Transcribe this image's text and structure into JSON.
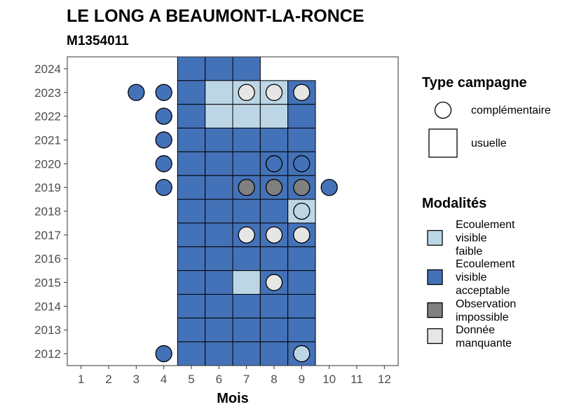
{
  "chart_data": {
    "type": "heatmap",
    "title": "LE LONG A BEAUMONT-LA-RONCE",
    "subtitle": "M1354011",
    "xlabel": "Mois",
    "ylabel": "",
    "x_ticks": [
      "1",
      "2",
      "3",
      "4",
      "5",
      "6",
      "7",
      "8",
      "9",
      "10",
      "11",
      "12"
    ],
    "y_ticks": [
      "2012",
      "2013",
      "2014",
      "2015",
      "2016",
      "2017",
      "2018",
      "2019",
      "2020",
      "2021",
      "2022",
      "2023",
      "2024"
    ],
    "xlim": [
      0.5,
      12.5
    ],
    "ylim": [
      2011.5,
      2024.5
    ],
    "grid": false,
    "legend_position": "right",
    "colors": {
      "Ecoulement visible faible": "#bcd6e6",
      "Ecoulement visible acceptable": "#4472b8",
      "Observation impossible": "#808080",
      "Donnée manquante": "#e6e6e6"
    },
    "legend_type": {
      "title": "Type campagne",
      "entries": [
        {
          "label": "complémentaire",
          "shape": "circle"
        },
        {
          "label": "usuelle",
          "shape": "square"
        }
      ]
    },
    "legend_modalites": {
      "title": "Modalités",
      "entries": [
        {
          "key": "Ecoulement visible faible",
          "lines": [
            "Ecoulement",
            "visible",
            "faible"
          ]
        },
        {
          "key": "Ecoulement visible acceptable",
          "lines": [
            "Ecoulement",
            "visible",
            "acceptable"
          ]
        },
        {
          "key": "Observation impossible",
          "lines": [
            "Observation",
            "impossible"
          ]
        },
        {
          "key": "Donnée manquante",
          "lines": [
            "Donnée",
            "manquante"
          ]
        }
      ]
    },
    "usuelle": [
      {
        "year": 2024,
        "month": 5,
        "mod": "Ecoulement visible acceptable"
      },
      {
        "year": 2024,
        "month": 6,
        "mod": "Ecoulement visible acceptable"
      },
      {
        "year": 2024,
        "month": 7,
        "mod": "Ecoulement visible acceptable"
      },
      {
        "year": 2023,
        "month": 5,
        "mod": "Ecoulement visible acceptable"
      },
      {
        "year": 2023,
        "month": 6,
        "mod": "Ecoulement visible faible"
      },
      {
        "year": 2023,
        "month": 7,
        "mod": "Ecoulement visible faible"
      },
      {
        "year": 2023,
        "month": 8,
        "mod": "Ecoulement visible faible"
      },
      {
        "year": 2023,
        "month": 9,
        "mod": "Ecoulement visible acceptable"
      },
      {
        "year": 2022,
        "month": 5,
        "mod": "Ecoulement visible acceptable"
      },
      {
        "year": 2022,
        "month": 6,
        "mod": "Ecoulement visible faible"
      },
      {
        "year": 2022,
        "month": 7,
        "mod": "Ecoulement visible faible"
      },
      {
        "year": 2022,
        "month": 8,
        "mod": "Ecoulement visible faible"
      },
      {
        "year": 2022,
        "month": 9,
        "mod": "Ecoulement visible acceptable"
      },
      {
        "year": 2021,
        "month": 5,
        "mod": "Ecoulement visible acceptable"
      },
      {
        "year": 2021,
        "month": 6,
        "mod": "Ecoulement visible acceptable"
      },
      {
        "year": 2021,
        "month": 7,
        "mod": "Ecoulement visible acceptable"
      },
      {
        "year": 2021,
        "month": 8,
        "mod": "Ecoulement visible acceptable"
      },
      {
        "year": 2021,
        "month": 9,
        "mod": "Ecoulement visible acceptable"
      },
      {
        "year": 2020,
        "month": 5,
        "mod": "Ecoulement visible acceptable"
      },
      {
        "year": 2020,
        "month": 6,
        "mod": "Ecoulement visible acceptable"
      },
      {
        "year": 2020,
        "month": 7,
        "mod": "Ecoulement visible acceptable"
      },
      {
        "year": 2020,
        "month": 8,
        "mod": "Ecoulement visible acceptable"
      },
      {
        "year": 2020,
        "month": 9,
        "mod": "Ecoulement visible acceptable"
      },
      {
        "year": 2019,
        "month": 5,
        "mod": "Ecoulement visible acceptable"
      },
      {
        "year": 2019,
        "month": 6,
        "mod": "Ecoulement visible acceptable"
      },
      {
        "year": 2019,
        "month": 7,
        "mod": "Ecoulement visible acceptable"
      },
      {
        "year": 2019,
        "month": 8,
        "mod": "Ecoulement visible acceptable"
      },
      {
        "year": 2019,
        "month": 9,
        "mod": "Ecoulement visible acceptable"
      },
      {
        "year": 2018,
        "month": 5,
        "mod": "Ecoulement visible acceptable"
      },
      {
        "year": 2018,
        "month": 6,
        "mod": "Ecoulement visible acceptable"
      },
      {
        "year": 2018,
        "month": 7,
        "mod": "Ecoulement visible acceptable"
      },
      {
        "year": 2018,
        "month": 8,
        "mod": "Ecoulement visible acceptable"
      },
      {
        "year": 2018,
        "month": 9,
        "mod": "Ecoulement visible faible"
      },
      {
        "year": 2017,
        "month": 5,
        "mod": "Ecoulement visible acceptable"
      },
      {
        "year": 2017,
        "month": 6,
        "mod": "Ecoulement visible acceptable"
      },
      {
        "year": 2017,
        "month": 7,
        "mod": "Ecoulement visible acceptable"
      },
      {
        "year": 2017,
        "month": 8,
        "mod": "Ecoulement visible acceptable"
      },
      {
        "year": 2017,
        "month": 9,
        "mod": "Ecoulement visible acceptable"
      },
      {
        "year": 2016,
        "month": 5,
        "mod": "Ecoulement visible acceptable"
      },
      {
        "year": 2016,
        "month": 6,
        "mod": "Ecoulement visible acceptable"
      },
      {
        "year": 2016,
        "month": 7,
        "mod": "Ecoulement visible acceptable"
      },
      {
        "year": 2016,
        "month": 8,
        "mod": "Ecoulement visible acceptable"
      },
      {
        "year": 2016,
        "month": 9,
        "mod": "Ecoulement visible acceptable"
      },
      {
        "year": 2015,
        "month": 5,
        "mod": "Ecoulement visible acceptable"
      },
      {
        "year": 2015,
        "month": 6,
        "mod": "Ecoulement visible acceptable"
      },
      {
        "year": 2015,
        "month": 7,
        "mod": "Ecoulement visible faible"
      },
      {
        "year": 2015,
        "month": 8,
        "mod": "Ecoulement visible acceptable"
      },
      {
        "year": 2015,
        "month": 9,
        "mod": "Ecoulement visible acceptable"
      },
      {
        "year": 2014,
        "month": 5,
        "mod": "Ecoulement visible acceptable"
      },
      {
        "year": 2014,
        "month": 6,
        "mod": "Ecoulement visible acceptable"
      },
      {
        "year": 2014,
        "month": 7,
        "mod": "Ecoulement visible acceptable"
      },
      {
        "year": 2014,
        "month": 8,
        "mod": "Ecoulement visible acceptable"
      },
      {
        "year": 2014,
        "month": 9,
        "mod": "Ecoulement visible acceptable"
      },
      {
        "year": 2013,
        "month": 5,
        "mod": "Ecoulement visible acceptable"
      },
      {
        "year": 2013,
        "month": 6,
        "mod": "Ecoulement visible acceptable"
      },
      {
        "year": 2013,
        "month": 7,
        "mod": "Ecoulement visible acceptable"
      },
      {
        "year": 2013,
        "month": 8,
        "mod": "Ecoulement visible acceptable"
      },
      {
        "year": 2013,
        "month": 9,
        "mod": "Ecoulement visible acceptable"
      },
      {
        "year": 2012,
        "month": 5,
        "mod": "Ecoulement visible acceptable"
      },
      {
        "year": 2012,
        "month": 6,
        "mod": "Ecoulement visible acceptable"
      },
      {
        "year": 2012,
        "month": 7,
        "mod": "Ecoulement visible acceptable"
      },
      {
        "year": 2012,
        "month": 8,
        "mod": "Ecoulement visible acceptable"
      },
      {
        "year": 2012,
        "month": 9,
        "mod": "Ecoulement visible acceptable"
      }
    ],
    "complementaire": [
      {
        "year": 2023,
        "month": 3,
        "mod": "Ecoulement visible acceptable"
      },
      {
        "year": 2023,
        "month": 4,
        "mod": "Ecoulement visible acceptable"
      },
      {
        "year": 2023,
        "month": 7,
        "mod": "Donnée manquante"
      },
      {
        "year": 2023,
        "month": 8,
        "mod": "Donnée manquante"
      },
      {
        "year": 2023,
        "month": 9,
        "mod": "Donnée manquante"
      },
      {
        "year": 2022,
        "month": 4,
        "mod": "Ecoulement visible acceptable"
      },
      {
        "year": 2021,
        "month": 4,
        "mod": "Ecoulement visible acceptable"
      },
      {
        "year": 2020,
        "month": 4,
        "mod": "Ecoulement visible acceptable"
      },
      {
        "year": 2020,
        "month": 8,
        "mod": "Ecoulement visible acceptable"
      },
      {
        "year": 2020,
        "month": 9,
        "mod": "Ecoulement visible acceptable"
      },
      {
        "year": 2019,
        "month": 4,
        "mod": "Ecoulement visible acceptable"
      },
      {
        "year": 2019,
        "month": 7,
        "mod": "Observation impossible"
      },
      {
        "year": 2019,
        "month": 8,
        "mod": "Observation impossible"
      },
      {
        "year": 2019,
        "month": 9,
        "mod": "Observation impossible"
      },
      {
        "year": 2019,
        "month": 10,
        "mod": "Ecoulement visible acceptable"
      },
      {
        "year": 2018,
        "month": 9,
        "mod": "Ecoulement visible faible"
      },
      {
        "year": 2017,
        "month": 7,
        "mod": "Donnée manquante"
      },
      {
        "year": 2017,
        "month": 8,
        "mod": "Donnée manquante"
      },
      {
        "year": 2017,
        "month": 9,
        "mod": "Donnée manquante"
      },
      {
        "year": 2015,
        "month": 8,
        "mod": "Donnée manquante"
      },
      {
        "year": 2012,
        "month": 4,
        "mod": "Ecoulement visible acceptable"
      },
      {
        "year": 2012,
        "month": 9,
        "mod": "Ecoulement visible faible"
      }
    ]
  }
}
